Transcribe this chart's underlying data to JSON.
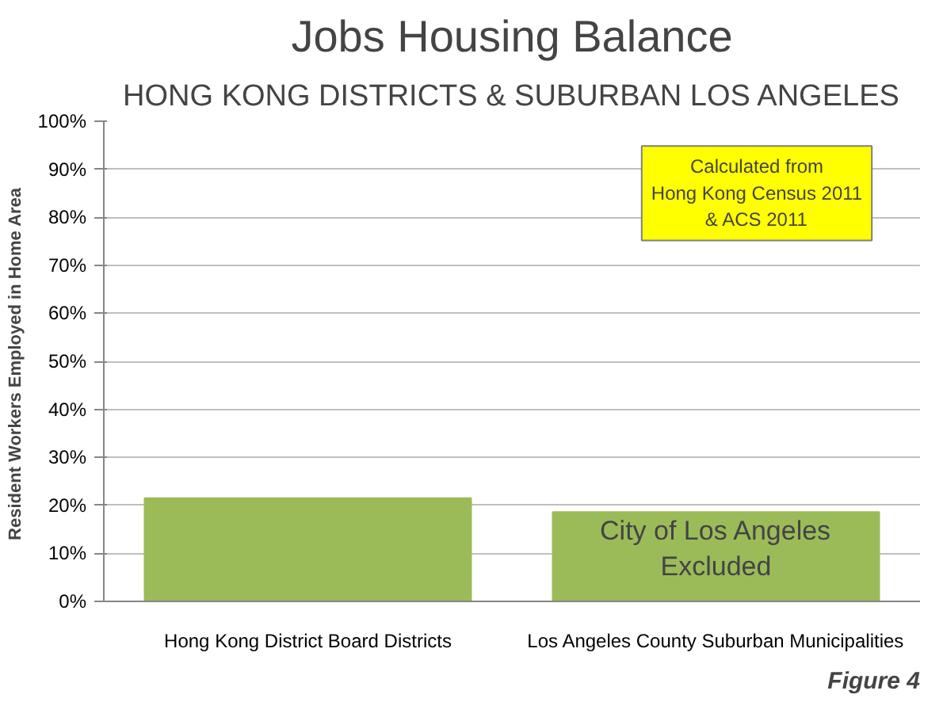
{
  "chart_data": {
    "type": "bar",
    "title": "Jobs Housing Balance",
    "subtitle": "HONG KONG DISTRICTS & SUBURBAN LOS ANGELES",
    "ylabel": "Resident Workers Employed in Home  Area",
    "categories": [
      "Hong Kong District Board Districts",
      "Los Angeles County Suburban Municipalities"
    ],
    "values": [
      21.5,
      18.6
    ],
    "color": "#9bbb59",
    "ylim": [
      0,
      100
    ],
    "yticks": [
      {
        "value": 0,
        "label": "0%"
      },
      {
        "value": 10,
        "label": "10%"
      },
      {
        "value": 20,
        "label": "20%"
      },
      {
        "value": 30,
        "label": "30%"
      },
      {
        "value": 40,
        "label": "40%"
      },
      {
        "value": 50,
        "label": "50%"
      },
      {
        "value": 60,
        "label": "60%"
      },
      {
        "value": 70,
        "label": "70%"
      },
      {
        "value": 80,
        "label": "80%"
      },
      {
        "value": 90,
        "label": "90%"
      },
      {
        "value": 100,
        "label": "100%"
      }
    ],
    "grid": "y",
    "annotations": [
      "Calculated from\nHong Kong Census 2011\n& ACS 2011",
      "City of Los Angeles\nExcluded",
      "Figure 4"
    ]
  }
}
